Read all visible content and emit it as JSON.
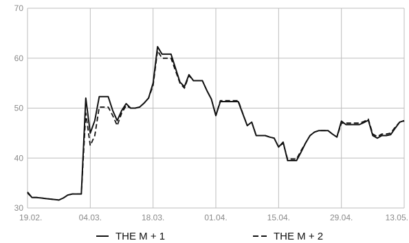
{
  "chart_data": {
    "type": "line",
    "title": "",
    "xlabel": "",
    "ylabel": "",
    "ylim": [
      30,
      70
    ],
    "yticks": [
      30,
      40,
      50,
      60,
      70
    ],
    "xlim": [
      "2024-02-19",
      "2024-05-13"
    ],
    "xticks": [
      {
        "date": "2024-02-19",
        "label": "19.02."
      },
      {
        "date": "2024-03-04",
        "label": "04.03."
      },
      {
        "date": "2024-03-18",
        "label": "18.03."
      },
      {
        "date": "2024-04-01",
        "label": "01.04."
      },
      {
        "date": "2024-04-15",
        "label": "15.04."
      },
      {
        "date": "2024-04-29",
        "label": "29.04."
      },
      {
        "date": "2024-05-13",
        "label": "13.05."
      }
    ],
    "grid": true,
    "legend_position": "bottom",
    "series": [
      {
        "name": "THE M + 1",
        "style": "solid",
        "color": "#111111",
        "points": [
          [
            "2024-02-19",
            33.2
          ],
          [
            "2024-02-20",
            32.1
          ],
          [
            "2024-02-21",
            32.1
          ],
          [
            "2024-02-22",
            32.0
          ],
          [
            "2024-02-23",
            31.9
          ],
          [
            "2024-02-26",
            31.6
          ],
          [
            "2024-02-27",
            32.0
          ],
          [
            "2024-02-28",
            32.6
          ],
          [
            "2024-02-29",
            32.8
          ],
          [
            "2024-03-01",
            32.8
          ],
          [
            "2024-03-02",
            32.8
          ],
          [
            "2024-03-03",
            52.0
          ],
          [
            "2024-03-04",
            45.0
          ],
          [
            "2024-03-05",
            47.5
          ],
          [
            "2024-03-06",
            52.3
          ],
          [
            "2024-03-07",
            52.3
          ],
          [
            "2024-03-08",
            52.3
          ],
          [
            "2024-03-09",
            49.5
          ],
          [
            "2024-03-10",
            47.5
          ],
          [
            "2024-03-11",
            49.5
          ],
          [
            "2024-03-12",
            50.9
          ],
          [
            "2024-03-13",
            50.0
          ],
          [
            "2024-03-14",
            50.0
          ],
          [
            "2024-03-15",
            50.2
          ],
          [
            "2024-03-16",
            51.0
          ],
          [
            "2024-03-17",
            52.0
          ],
          [
            "2024-03-18",
            55.0
          ],
          [
            "2024-03-19",
            62.3
          ],
          [
            "2024-03-20",
            60.8
          ],
          [
            "2024-03-21",
            60.8
          ],
          [
            "2024-03-22",
            60.8
          ],
          [
            "2024-03-23",
            58.0
          ],
          [
            "2024-03-24",
            55.2
          ],
          [
            "2024-03-25",
            54.3
          ],
          [
            "2024-03-26",
            56.7
          ],
          [
            "2024-03-27",
            55.5
          ],
          [
            "2024-03-28",
            55.5
          ],
          [
            "2024-03-29",
            55.5
          ],
          [
            "2024-03-30",
            53.5
          ],
          [
            "2024-03-31",
            51.8
          ],
          [
            "2024-04-01",
            48.5
          ],
          [
            "2024-04-02",
            51.3
          ],
          [
            "2024-04-03",
            51.3
          ],
          [
            "2024-04-04",
            51.3
          ],
          [
            "2024-04-05",
            51.3
          ],
          [
            "2024-04-06",
            51.3
          ],
          [
            "2024-04-07",
            48.9
          ],
          [
            "2024-04-08",
            46.5
          ],
          [
            "2024-04-09",
            47.2
          ],
          [
            "2024-04-10",
            44.5
          ],
          [
            "2024-04-11",
            44.5
          ],
          [
            "2024-04-12",
            44.5
          ],
          [
            "2024-04-13",
            44.2
          ],
          [
            "2024-04-14",
            44.0
          ],
          [
            "2024-04-15",
            42.2
          ],
          [
            "2024-04-16",
            43.2
          ],
          [
            "2024-04-17",
            39.5
          ],
          [
            "2024-04-18",
            39.5
          ],
          [
            "2024-04-19",
            39.5
          ],
          [
            "2024-04-20",
            41.2
          ],
          [
            "2024-04-21",
            43.0
          ],
          [
            "2024-04-22",
            44.5
          ],
          [
            "2024-04-23",
            45.2
          ],
          [
            "2024-04-24",
            45.5
          ],
          [
            "2024-04-25",
            45.5
          ],
          [
            "2024-04-26",
            45.5
          ],
          [
            "2024-04-27",
            44.8
          ],
          [
            "2024-04-28",
            44.2
          ],
          [
            "2024-04-29",
            47.4
          ],
          [
            "2024-04-30",
            46.7
          ],
          [
            "2024-05-01",
            46.7
          ],
          [
            "2024-05-02",
            46.7
          ],
          [
            "2024-05-03",
            46.7
          ],
          [
            "2024-05-04",
            47.1
          ],
          [
            "2024-05-05",
            47.6
          ],
          [
            "2024-05-06",
            44.5
          ],
          [
            "2024-05-07",
            44.0
          ],
          [
            "2024-05-08",
            44.5
          ],
          [
            "2024-05-09",
            44.5
          ],
          [
            "2024-05-10",
            44.7
          ],
          [
            "2024-05-11",
            46.0
          ],
          [
            "2024-05-12",
            47.2
          ],
          [
            "2024-05-13",
            47.5
          ]
        ]
      },
      {
        "name": "THE M + 2",
        "style": "dashed",
        "color": "#111111",
        "points": [
          [
            "2024-02-19",
            33.0
          ],
          [
            "2024-02-20",
            32.1
          ],
          [
            "2024-02-21",
            32.1
          ],
          [
            "2024-02-22",
            32.0
          ],
          [
            "2024-02-23",
            31.9
          ],
          [
            "2024-02-26",
            31.6
          ],
          [
            "2024-02-27",
            32.0
          ],
          [
            "2024-02-28",
            32.6
          ],
          [
            "2024-02-29",
            32.8
          ],
          [
            "2024-03-01",
            32.8
          ],
          [
            "2024-03-02",
            32.8
          ],
          [
            "2024-03-03",
            49.0
          ],
          [
            "2024-03-04",
            42.5
          ],
          [
            "2024-03-05",
            44.5
          ],
          [
            "2024-03-06",
            50.2
          ],
          [
            "2024-03-07",
            50.2
          ],
          [
            "2024-03-08",
            50.2
          ],
          [
            "2024-03-09",
            48.5
          ],
          [
            "2024-03-10",
            46.5
          ],
          [
            "2024-03-11",
            49.0
          ],
          [
            "2024-03-12",
            50.5
          ],
          [
            "2024-03-13",
            50.0
          ],
          [
            "2024-03-14",
            50.0
          ],
          [
            "2024-03-15",
            50.2
          ],
          [
            "2024-03-16",
            51.0
          ],
          [
            "2024-03-17",
            52.0
          ],
          [
            "2024-03-18",
            54.5
          ],
          [
            "2024-03-19",
            61.5
          ],
          [
            "2024-03-20",
            60.0
          ],
          [
            "2024-03-21",
            60.0
          ],
          [
            "2024-03-22",
            60.0
          ],
          [
            "2024-03-23",
            57.5
          ],
          [
            "2024-03-24",
            55.0
          ],
          [
            "2024-03-25",
            54.0
          ],
          [
            "2024-03-26",
            56.5
          ],
          [
            "2024-03-27",
            55.5
          ],
          [
            "2024-03-28",
            55.5
          ],
          [
            "2024-03-29",
            55.5
          ],
          [
            "2024-03-30",
            53.5
          ],
          [
            "2024-03-31",
            51.8
          ],
          [
            "2024-04-01",
            48.5
          ],
          [
            "2024-04-02",
            51.5
          ],
          [
            "2024-04-03",
            51.5
          ],
          [
            "2024-04-04",
            51.5
          ],
          [
            "2024-04-05",
            51.5
          ],
          [
            "2024-04-06",
            51.5
          ],
          [
            "2024-04-07",
            49.0
          ],
          [
            "2024-04-08",
            46.5
          ],
          [
            "2024-04-09",
            47.2
          ],
          [
            "2024-04-10",
            44.5
          ],
          [
            "2024-04-11",
            44.5
          ],
          [
            "2024-04-12",
            44.5
          ],
          [
            "2024-04-13",
            44.2
          ],
          [
            "2024-04-14",
            44.0
          ],
          [
            "2024-04-15",
            42.2
          ],
          [
            "2024-04-16",
            43.0
          ],
          [
            "2024-04-17",
            39.8
          ],
          [
            "2024-04-18",
            39.8
          ],
          [
            "2024-04-19",
            39.8
          ],
          [
            "2024-04-20",
            41.5
          ],
          [
            "2024-04-21",
            43.0
          ],
          [
            "2024-04-22",
            44.5
          ],
          [
            "2024-04-23",
            45.2
          ],
          [
            "2024-04-24",
            45.5
          ],
          [
            "2024-04-25",
            45.5
          ],
          [
            "2024-04-26",
            45.5
          ],
          [
            "2024-04-27",
            44.8
          ],
          [
            "2024-04-28",
            44.2
          ],
          [
            "2024-04-29",
            47.0
          ],
          [
            "2024-04-30",
            47.0
          ],
          [
            "2024-05-01",
            47.0
          ],
          [
            "2024-05-02",
            47.0
          ],
          [
            "2024-05-03",
            47.0
          ],
          [
            "2024-05-04",
            47.3
          ],
          [
            "2024-05-05",
            47.8
          ],
          [
            "2024-05-06",
            44.8
          ],
          [
            "2024-05-07",
            44.3
          ],
          [
            "2024-05-08",
            44.8
          ],
          [
            "2024-05-09",
            44.8
          ],
          [
            "2024-05-10",
            45.0
          ],
          [
            "2024-05-11",
            46.2
          ],
          [
            "2024-05-12",
            47.2
          ],
          [
            "2024-05-13",
            47.4
          ]
        ]
      }
    ]
  }
}
